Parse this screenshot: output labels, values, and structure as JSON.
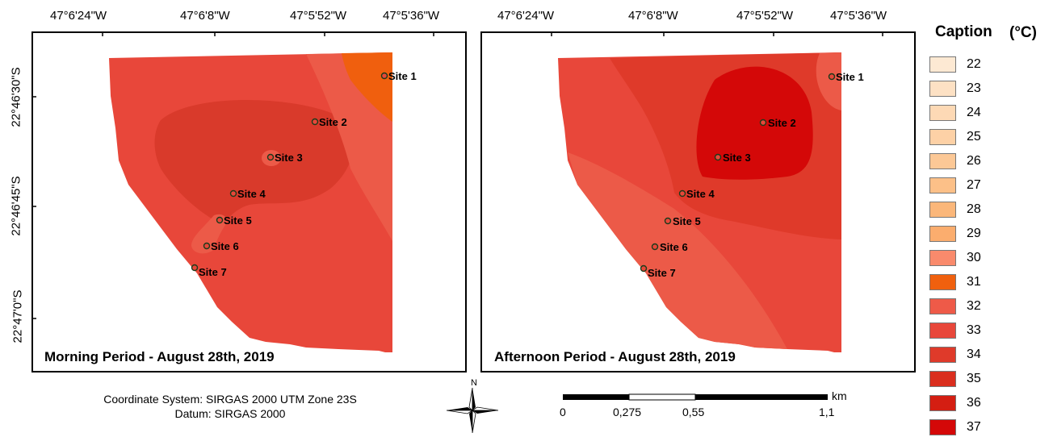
{
  "colors": {
    "base": "#e8473a",
    "mid": "#d93a2b",
    "hot": "#dc1410",
    "light": "#ec5a48",
    "orange": "#f05f0e",
    "pale": "#f08070"
  },
  "top_axis_labels": [
    "47°6'24\"W",
    "47°6'8\"W",
    "47°5'52\"W",
    "47°5'36\"W"
  ],
  "left_axis_labels": [
    "22°46'30\"S",
    "22°46'45\"S",
    "22°47'0\"S"
  ],
  "panels": [
    {
      "title": "Morning Period - August 28th, 2019",
      "sites": [
        "Site 1",
        "Site 2",
        "Site 3",
        "Site 4",
        "Site 5",
        "Site 6",
        "Site 7"
      ]
    },
    {
      "title": "Afternoon Period - August 28th, 2019",
      "sites": [
        "Site 1",
        "Site 2",
        "Site 3",
        "Site 4",
        "Site 5",
        "Site 6",
        "Site 7"
      ]
    }
  ],
  "legend": {
    "title": "Caption",
    "unit": "(°C)",
    "items": [
      {
        "label": "22",
        "color": "#fde9d3"
      },
      {
        "label": "23",
        "color": "#fde1c4"
      },
      {
        "label": "24",
        "color": "#fdd9b5"
      },
      {
        "label": "25",
        "color": "#fdd1a6"
      },
      {
        "label": "26",
        "color": "#fcc896"
      },
      {
        "label": "27",
        "color": "#fcc088"
      },
      {
        "label": "28",
        "color": "#fbb77a"
      },
      {
        "label": "29",
        "color": "#fbad6e"
      },
      {
        "label": "30",
        "color": "#f98a6c"
      },
      {
        "label": "31",
        "color": "#f0600e"
      },
      {
        "label": "32",
        "color": "#ee5a48"
      },
      {
        "label": "33",
        "color": "#e8473a"
      },
      {
        "label": "34",
        "color": "#df3a2a"
      },
      {
        "label": "35",
        "color": "#da2e1e"
      },
      {
        "label": "36",
        "color": "#d41e12"
      },
      {
        "label": "37",
        "color": "#d40808"
      }
    ]
  },
  "footer": {
    "coordinate_system": "Coordinate System: SIRGAS 2000 UTM Zone 23S",
    "datum": "Datum: SIRGAS 2000",
    "north": "N",
    "scale_unit": "km",
    "scale_ticks": [
      "0",
      "0,275",
      "0,55",
      "1,1"
    ]
  }
}
